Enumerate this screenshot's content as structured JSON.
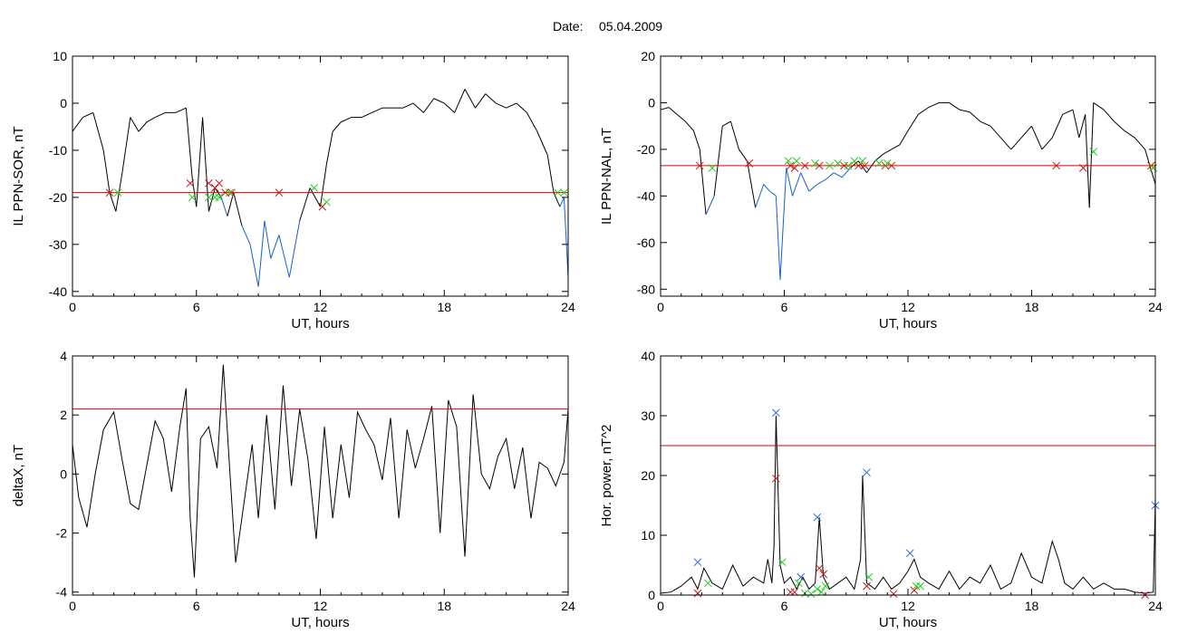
{
  "header": {
    "date_label": "Date:",
    "date_value": "05.04.2009"
  },
  "colors": {
    "trace": "#000000",
    "below_threshold": "#1560d0",
    "threshold": "#e00000",
    "marker_red": "#cc1111",
    "marker_green": "#22cc22",
    "marker_blue": "#2266dd"
  },
  "chart_data": [
    {
      "id": "il-ppn-sor",
      "type": "line",
      "title": "",
      "xlabel": "UT, hours",
      "ylabel": "IL PPN-SOR, nT",
      "xlim": [
        0,
        24
      ],
      "ylim": [
        -41,
        10
      ],
      "xticks": [
        0,
        6,
        12,
        18,
        24
      ],
      "yticks": [
        10,
        0,
        -10,
        -20,
        -30,
        -40
      ],
      "threshold": -19,
      "below_threshold_color": "#1560d0",
      "series": [
        {
          "x": [
            0,
            0.5,
            1,
            1.5,
            1.8,
            2.1,
            2.4,
            2.8,
            3.2,
            3.6,
            4,
            4.5,
            5,
            5.5,
            5.8,
            6,
            6.3,
            6.6,
            6.9,
            7.2,
            7.5,
            7.8,
            8.2,
            8.6,
            9,
            9.3,
            9.6,
            10,
            10.5,
            11,
            11.5,
            12,
            12.3,
            12.6,
            13,
            13.5,
            14,
            14.5,
            15,
            15.5,
            16,
            16.5,
            17,
            17.5,
            18,
            18.5,
            19,
            19.5,
            20,
            20.5,
            21,
            21.5,
            22,
            22.5,
            23,
            23.3,
            23.6,
            23.8,
            24
          ],
          "y": [
            -6,
            -3,
            -2,
            -10,
            -19,
            -23,
            -15,
            -3,
            -6,
            -4,
            -3,
            -2,
            -2,
            -1,
            -16,
            -22,
            -3,
            -23,
            -18,
            -20,
            -24,
            -19,
            -26,
            -30,
            -39,
            -25,
            -33,
            -28,
            -37,
            -25,
            -18,
            -22,
            -13,
            -6,
            -4,
            -3,
            -3,
            -2,
            -1,
            -1,
            -1,
            0,
            -2,
            1,
            0,
            -2,
            3,
            -1,
            2,
            0,
            -1,
            0,
            -2,
            -6,
            -11,
            -19,
            -22,
            -20,
            -37
          ]
        }
      ],
      "markers": {
        "red": {
          "x": [
            1.8,
            5.7,
            6.6,
            6.9,
            7.1,
            7.4,
            7.7,
            10,
            12.1
          ],
          "y": [
            -19,
            -17,
            -17,
            -18,
            -17,
            -19,
            -19,
            -19,
            -22
          ]
        },
        "green": {
          "x": [
            2.2,
            5.8,
            6.6,
            6.9,
            7.1,
            7.6,
            11.7,
            12.3,
            23.5,
            23.8
          ],
          "y": [
            -19,
            -20,
            -20,
            -20,
            -20,
            -19,
            -18,
            -21,
            -19,
            -19
          ]
        }
      }
    },
    {
      "id": "il-ppn-nal",
      "type": "line",
      "title": "",
      "xlabel": "UT, hours",
      "ylabel": "IL PPN-NAL, nT",
      "xlim": [
        0,
        24
      ],
      "ylim": [
        -83,
        20
      ],
      "xticks": [
        0,
        6,
        12,
        18,
        24
      ],
      "yticks": [
        20,
        0,
        -20,
        -40,
        -60,
        -80
      ],
      "threshold": -27,
      "below_threshold_color": "#1560d0",
      "series": [
        {
          "x": [
            0,
            0.4,
            0.8,
            1.2,
            1.6,
            1.9,
            2.2,
            2.6,
            3,
            3.4,
            3.8,
            4.2,
            4.6,
            5,
            5.3,
            5.6,
            5.8,
            6.1,
            6.4,
            6.8,
            7.2,
            7.6,
            8,
            8.4,
            8.8,
            9.2,
            9.6,
            10,
            10.4,
            10.8,
            11.2,
            11.6,
            12,
            12.5,
            13,
            13.5,
            14,
            14.5,
            15,
            15.5,
            16,
            16.5,
            17,
            17.5,
            18,
            18.5,
            19,
            19.5,
            20,
            20.3,
            20.6,
            20.8,
            21,
            21.5,
            22,
            22.5,
            23,
            23.5,
            24
          ],
          "y": [
            -3,
            -2,
            -5,
            -8,
            -12,
            -20,
            -48,
            -40,
            -10,
            -8,
            -20,
            -25,
            -45,
            -35,
            -38,
            -40,
            -76,
            -28,
            -40,
            -30,
            -38,
            -35,
            -33,
            -30,
            -32,
            -28,
            -25,
            -30,
            -25,
            -22,
            -20,
            -18,
            -12,
            -5,
            -2,
            0,
            0,
            -3,
            -4,
            -8,
            -10,
            -15,
            -20,
            -15,
            -10,
            -20,
            -15,
            -5,
            -3,
            -15,
            -5,
            -45,
            0,
            -3,
            -8,
            -12,
            -15,
            -20,
            -35
          ]
        }
      ],
      "markers": {
        "red": {
          "x": [
            1.9,
            4.3,
            6.3,
            6.5,
            7,
            7.7,
            8.9,
            9.6,
            9.9,
            10.9,
            11.2,
            19.2,
            20.5,
            23.8
          ],
          "y": [
            -27,
            -26,
            -27,
            -28,
            -27,
            -27,
            -27,
            -27,
            -27,
            -27,
            -27,
            -27,
            -28,
            -27
          ]
        },
        "green": {
          "x": [
            2.5,
            6.2,
            6.6,
            7.5,
            8.2,
            8.6,
            9.1,
            9.4,
            9.8,
            10.6,
            11,
            21,
            23.9
          ],
          "y": [
            -28,
            -25,
            -25,
            -26,
            -27,
            -26,
            -27,
            -25,
            -25,
            -26,
            -26,
            -21,
            -28
          ]
        }
      }
    },
    {
      "id": "deltax",
      "type": "line",
      "title": "",
      "xlabel": "UT, hours",
      "ylabel": "deltaX, nT",
      "xlim": [
        0,
        24
      ],
      "ylim": [
        -4.1,
        4
      ],
      "xticks": [
        0,
        6,
        12,
        18,
        24
      ],
      "yticks": [
        4,
        2,
        0,
        -2,
        -4
      ],
      "threshold": 2.2,
      "series": [
        {
          "x": [
            0,
            0.3,
            0.7,
            1.1,
            1.5,
            2,
            2.4,
            2.8,
            3.2,
            3.6,
            4,
            4.4,
            4.8,
            5.2,
            5.5,
            5.7,
            5.9,
            6.2,
            6.6,
            7,
            7.3,
            7.6,
            7.9,
            8.3,
            8.7,
            9,
            9.4,
            9.8,
            10.2,
            10.6,
            11,
            11.4,
            11.8,
            12.2,
            12.6,
            13,
            13.4,
            13.8,
            14.2,
            14.6,
            15,
            15.4,
            15.8,
            16.2,
            16.6,
            17,
            17.4,
            17.8,
            18.2,
            18.6,
            19,
            19.4,
            19.8,
            20.2,
            20.6,
            21,
            21.4,
            21.8,
            22.2,
            22.6,
            23,
            23.4,
            23.8,
            24
          ],
          "y": [
            1,
            -0.8,
            -1.8,
            0,
            1.5,
            2.1,
            0.5,
            -1,
            -1.2,
            0.3,
            1.8,
            1.2,
            -0.6,
            1.6,
            2.9,
            -1.5,
            -3.5,
            1.2,
            1.6,
            0.2,
            3.7,
            0.3,
            -3,
            -1,
            1,
            -1.5,
            2,
            -1.2,
            3,
            -0.4,
            2.2,
            0.5,
            -2.2,
            1.6,
            -1.5,
            1,
            -0.8,
            2.1,
            1.5,
            1,
            -0.2,
            1.9,
            -1.5,
            1.5,
            0.2,
            1.2,
            2.3,
            -2,
            2.5,
            1.6,
            -2.8,
            2.7,
            0,
            -0.5,
            0.6,
            1.2,
            -0.5,
            0.9,
            -1.5,
            0.4,
            0.2,
            -0.4,
            0.4,
            2.2
          ]
        }
      ]
    },
    {
      "id": "hor-power",
      "type": "line",
      "title": "",
      "xlabel": "UT, hours",
      "ylabel": "Hor. power, nT^2",
      "xlim": [
        0,
        24
      ],
      "ylim": [
        0,
        40
      ],
      "xticks": [
        0,
        6,
        12,
        18,
        24
      ],
      "yticks": [
        40,
        30,
        20,
        10,
        0
      ],
      "threshold": 25,
      "series": [
        {
          "x": [
            0,
            0.5,
            1,
            1.5,
            1.8,
            2.1,
            2.5,
            3,
            3.5,
            4,
            4.5,
            5,
            5.2,
            5.4,
            5.5,
            5.6,
            5.8,
            6,
            6.3,
            6.6,
            6.9,
            7.2,
            7.5,
            7.7,
            7.9,
            8.2,
            8.6,
            9,
            9.4,
            9.7,
            9.8,
            10,
            10.4,
            10.8,
            11.2,
            11.6,
            12,
            12.3,
            12.6,
            13,
            13.5,
            14,
            14.5,
            15,
            15.5,
            16,
            16.5,
            17,
            17.5,
            18,
            18.5,
            19,
            19.3,
            19.6,
            20,
            20.5,
            21,
            21.5,
            22,
            22.5,
            23,
            23.5,
            23.9,
            24
          ],
          "y": [
            0.3,
            0.5,
            1.5,
            3,
            1,
            4.5,
            2,
            1,
            5,
            1.5,
            3,
            2,
            6,
            2,
            8,
            30,
            5,
            2,
            3,
            1,
            3,
            1,
            2,
            13,
            3,
            1,
            2,
            3,
            1,
            6,
            20,
            2,
            1,
            3,
            1,
            2,
            4,
            6,
            3,
            2,
            1,
            4,
            1,
            3,
            2,
            5,
            1,
            2,
            7,
            3,
            2,
            9,
            6,
            2,
            1,
            3,
            1,
            2,
            1,
            1,
            0.5,
            0.3,
            0.5,
            16
          ]
        }
      ],
      "markers": {
        "red": {
          "x": [
            1.8,
            5.6,
            6.3,
            6.5,
            7.7,
            7.9,
            10,
            11.3,
            12.3,
            23.5
          ],
          "y": [
            0.3,
            19.5,
            0.5,
            0.5,
            4.5,
            3.5,
            1.5,
            0.2,
            0.8,
            0
          ]
        },
        "green": {
          "x": [
            2.3,
            5.9,
            6.7,
            7,
            7.3,
            7.6,
            7.8,
            8,
            10.1,
            12.4,
            12.6
          ],
          "y": [
            2,
            5.5,
            2,
            0.3,
            0.2,
            1,
            0.5,
            1.5,
            3,
            1.5,
            1.5
          ]
        },
        "blue": {
          "x": [
            1.8,
            5.6,
            6.8,
            7.6,
            10,
            12.1,
            24
          ],
          "y": [
            5.5,
            30.5,
            3,
            13,
            20.5,
            7,
            15
          ]
        }
      }
    }
  ]
}
